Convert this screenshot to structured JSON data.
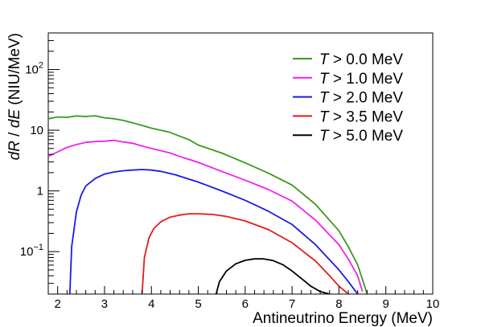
{
  "chart_data": {
    "type": "line",
    "title": "",
    "xlabel": "Antineutrino Energy (MeV)",
    "ylabel_parts": [
      "dR",
      " / ",
      "dE",
      " (NIU/MeV)"
    ],
    "xlim": [
      1.8,
      10
    ],
    "ylim": [
      0.02,
      400
    ],
    "yscale": "log",
    "grid": false,
    "legend_position": "top-right",
    "x_ticks": [
      {
        "value": 2,
        "label": "2"
      },
      {
        "value": 3,
        "label": "3"
      },
      {
        "value": 4,
        "label": "4"
      },
      {
        "value": 5,
        "label": "5"
      },
      {
        "value": 6,
        "label": "6"
      },
      {
        "value": 7,
        "label": "7"
      },
      {
        "value": 8,
        "label": "8"
      },
      {
        "value": 9,
        "label": "9"
      },
      {
        "value": 10,
        "label": "10"
      }
    ],
    "y_ticks": [
      {
        "value": 0.1,
        "base": "10",
        "exp": "−1"
      },
      {
        "value": 1,
        "base": "1",
        "exp": ""
      },
      {
        "value": 10,
        "base": "10",
        "exp": ""
      },
      {
        "value": 100,
        "base": "10",
        "exp": "2"
      }
    ],
    "series": [
      {
        "name_var": "T",
        "name_rest": " > 0.0 MeV",
        "color": "#3a9a1a",
        "x": [
          1.8,
          2.0,
          2.2,
          2.4,
          2.6,
          2.8,
          3.0,
          3.2,
          3.4,
          3.6,
          3.8,
          4.0,
          4.2,
          4.4,
          4.6,
          4.8,
          5.0,
          5.5,
          6.0,
          6.5,
          7.0,
          7.5,
          8.0,
          8.2,
          8.4,
          8.5,
          8.6
        ],
        "y": [
          15.5,
          16.5,
          16.3,
          17.2,
          16.8,
          17.3,
          16.0,
          15.5,
          14.5,
          13.2,
          12.0,
          10.8,
          10.0,
          9.2,
          8.0,
          7.0,
          5.7,
          4.2,
          2.9,
          1.95,
          1.25,
          0.6,
          0.22,
          0.12,
          0.06,
          0.035,
          0.02
        ]
      },
      {
        "name_var": "T",
        "name_rest": " > 1.0 MeV",
        "color": "#ee22ee",
        "x": [
          1.8,
          2.0,
          2.2,
          2.4,
          2.6,
          2.8,
          3.0,
          3.2,
          3.4,
          3.6,
          3.8,
          4.0,
          4.2,
          4.4,
          4.6,
          4.8,
          5.0,
          5.5,
          6.0,
          6.5,
          7.0,
          7.5,
          8.0,
          8.2,
          8.4,
          8.5
        ],
        "y": [
          3.7,
          4.4,
          5.2,
          5.8,
          6.3,
          6.5,
          6.6,
          6.8,
          6.4,
          6.1,
          5.5,
          5.0,
          4.6,
          4.2,
          3.7,
          3.3,
          2.95,
          2.1,
          1.5,
          1.05,
          0.68,
          0.33,
          0.13,
          0.075,
          0.04,
          0.022
        ]
      },
      {
        "name_var": "T",
        "name_rest": " > 2.0 MeV",
        "color": "#1a1ae6",
        "x": [
          2.26,
          2.3,
          2.4,
          2.5,
          2.6,
          2.8,
          3.0,
          3.2,
          3.4,
          3.6,
          3.8,
          4.0,
          4.2,
          4.5,
          5.0,
          5.5,
          6.0,
          6.5,
          7.0,
          7.5,
          8.0,
          8.2,
          8.4
        ],
        "y": [
          0.02,
          0.12,
          0.45,
          0.85,
          1.2,
          1.6,
          1.9,
          2.05,
          2.15,
          2.2,
          2.25,
          2.2,
          2.1,
          1.85,
          1.4,
          1.0,
          0.7,
          0.46,
          0.28,
          0.13,
          0.05,
          0.032,
          0.02
        ]
      },
      {
        "name_var": "T",
        "name_rest": " > 3.5 MeV",
        "color": "#e61a1a",
        "x": [
          3.8,
          3.85,
          3.95,
          4.05,
          4.2,
          4.4,
          4.6,
          4.8,
          5.0,
          5.3,
          5.6,
          6.0,
          6.5,
          7.0,
          7.5,
          7.8,
          8.0,
          8.2
        ],
        "y": [
          0.02,
          0.08,
          0.17,
          0.24,
          0.31,
          0.37,
          0.4,
          0.42,
          0.42,
          0.41,
          0.38,
          0.32,
          0.23,
          0.14,
          0.07,
          0.04,
          0.027,
          0.02
        ]
      },
      {
        "name_var": "T",
        "name_rest": " > 5.0 MeV",
        "color": "#000000",
        "x": [
          5.38,
          5.45,
          5.6,
          5.8,
          6.0,
          6.2,
          6.4,
          6.6,
          6.8,
          7.0,
          7.2,
          7.4,
          7.6,
          7.8
        ],
        "y": [
          0.02,
          0.032,
          0.048,
          0.063,
          0.072,
          0.076,
          0.076,
          0.071,
          0.061,
          0.048,
          0.036,
          0.027,
          0.022,
          0.02
        ]
      }
    ]
  }
}
